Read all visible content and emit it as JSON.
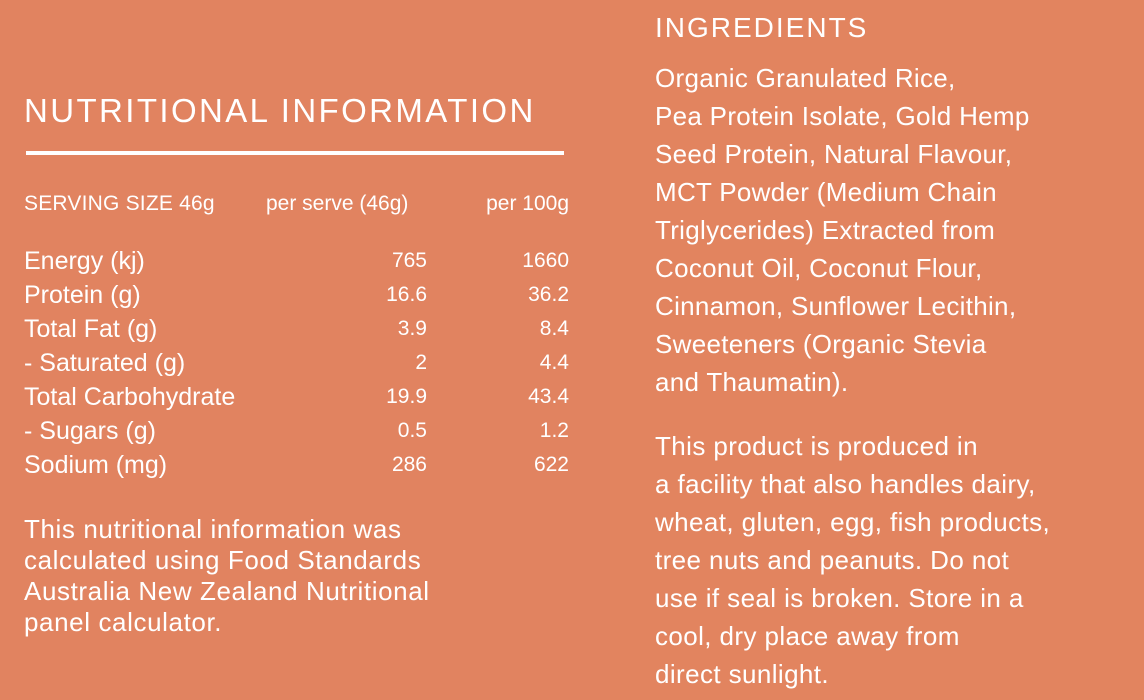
{
  "colors": {
    "background": "#e28461",
    "text": "#ffffff"
  },
  "nutrition": {
    "title": "NUTRITIONAL INFORMATION",
    "header": {
      "serving_size": "SERVING SIZE 46g",
      "per_serve": "per serve (46g)",
      "per_100g": "per 100g"
    },
    "rows": [
      {
        "label": "Energy (kj)",
        "per_serve": "765",
        "per_100g": "1660"
      },
      {
        "label": "Protein (g)",
        "per_serve": "16.6",
        "per_100g": "36.2"
      },
      {
        "label": "Total Fat (g)",
        "per_serve": "3.9",
        "per_100g": "8.4"
      },
      {
        "label": "- Saturated (g)",
        "per_serve": "2",
        "per_100g": "4.4"
      },
      {
        "label": "Total Carbohydrate",
        "per_serve": "19.9",
        "per_100g": "43.4"
      },
      {
        "label": "- Sugars (g)",
        "per_serve": "0.5",
        "per_100g": "1.2"
      },
      {
        "label": "Sodium (mg)",
        "per_serve": "286",
        "per_100g": "622"
      }
    ],
    "footnote_lines": [
      "This nutritional information was",
      "calculated using Food Standards",
      "Australia New Zealand Nutritional",
      "panel calculator."
    ]
  },
  "ingredients": {
    "title": "INGREDIENTS",
    "lines": [
      "Organic Granulated Rice,",
      "Pea Protein Isolate, Gold Hemp",
      "Seed Protein, Natural Flavour,",
      "MCT Powder (Medium Chain",
      "Triglycerides) Extracted from",
      "Coconut Oil, Coconut Flour,",
      "Cinnamon, Sunflower Lecithin,",
      "Sweeteners (Organic Stevia",
      "and Thaumatin)."
    ],
    "warning_lines": [
      "This product is produced in",
      "a facility that also handles dairy,",
      "wheat, gluten, egg, fish products,",
      "tree nuts and peanuts. Do not",
      "use if seal is broken. Store in a",
      "cool, dry place away from",
      "direct sunlight."
    ]
  }
}
